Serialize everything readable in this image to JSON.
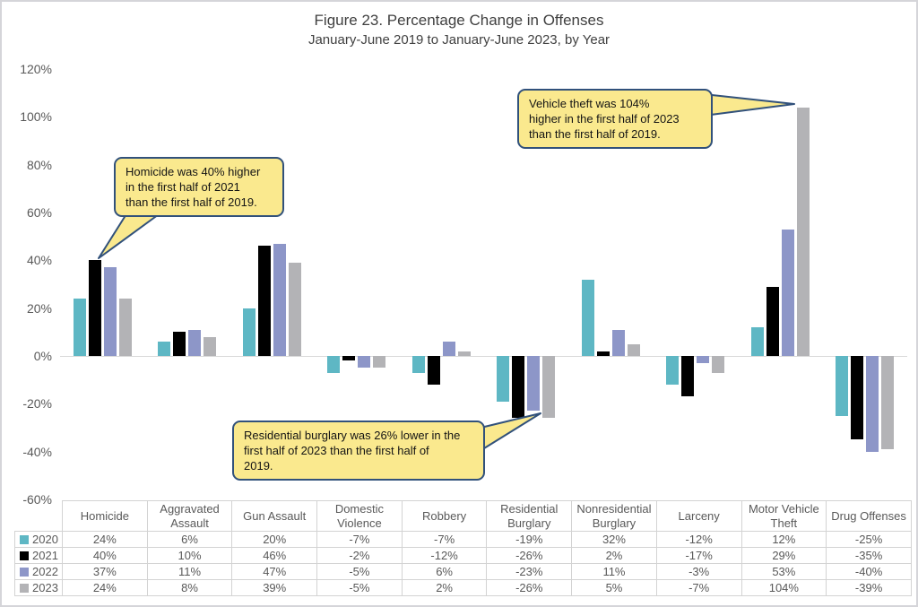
{
  "chart_data": {
    "type": "bar",
    "title": "Figure 23. Percentage Change in Offenses",
    "subtitle": "January-June 2019 to January-June 2023, by Year",
    "categories": [
      "Homicide",
      "Aggravated Assault",
      "Gun Assault",
      "Domestic Violence",
      "Robbery",
      "Residential Burglary",
      "Nonresidential Burglary",
      "Larceny",
      "Motor Vehicle Theft",
      "Drug Offenses"
    ],
    "series": [
      {
        "name": "2020",
        "color": "#5eb7c4",
        "values": [
          24,
          6,
          20,
          -7,
          -7,
          -19,
          32,
          -12,
          12,
          -25
        ]
      },
      {
        "name": "2021",
        "color": "#000000",
        "values": [
          40,
          10,
          46,
          -2,
          -12,
          -26,
          2,
          -17,
          29,
          -35
        ]
      },
      {
        "name": "2022",
        "color": "#8d96c8",
        "values": [
          37,
          11,
          47,
          -5,
          6,
          -23,
          11,
          -3,
          53,
          -40
        ]
      },
      {
        "name": "2023",
        "color": "#b3b3b6",
        "values": [
          24,
          8,
          39,
          -5,
          2,
          -26,
          5,
          -7,
          104,
          -39
        ]
      }
    ],
    "value_suffix": "%",
    "ylim": [
      -60,
      120
    ],
    "yticks": [
      "120%",
      "100%",
      "80%",
      "60%",
      "40%",
      "20%",
      "0%",
      "-20%",
      "-40%",
      "-60%"
    ],
    "grid": false,
    "legend_position": "table-rows-left"
  },
  "callouts": {
    "homicide": {
      "text": "Homicide was 40% higher\nin the first half of 2021\nthan the first half of 2019."
    },
    "vehicle_theft": {
      "text": "Vehicle theft was 104%\nhigher in the first half of 2023\nthan the first half of 2019."
    },
    "residential_burglary": {
      "text": "Residential burglary was 26% lower in the\nfirst half of 2023 than the first half of\n2019."
    }
  },
  "colors": {
    "callout_fill": "#fae98e",
    "callout_border": "#31517b",
    "zero_line": "#d9d9d9",
    "table_border": "#d3d3d3",
    "axis_text": "#595959",
    "title_text": "#404040"
  }
}
